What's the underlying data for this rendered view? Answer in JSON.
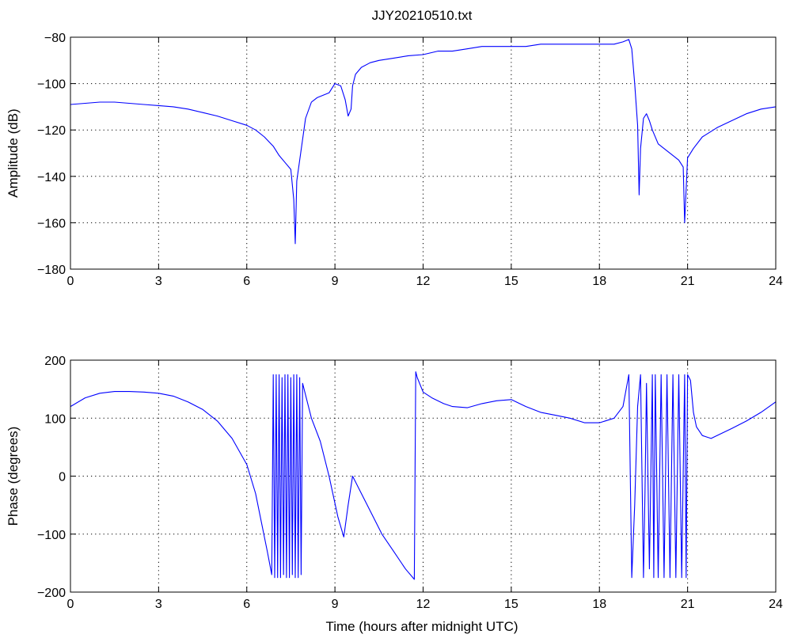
{
  "title": "JJY20210510.txt",
  "xlabel": "Time (hours after midnight UTC)",
  "chart_data": [
    {
      "type": "line",
      "title": "JJY20210510.txt",
      "xlabel": "",
      "ylabel": "Amplitude (dB)",
      "xlim": [
        0,
        24
      ],
      "ylim": [
        -180,
        -80
      ],
      "xticks": [
        0,
        3,
        6,
        9,
        12,
        15,
        18,
        21,
        24
      ],
      "yticks": [
        -80,
        -100,
        -120,
        -140,
        -160,
        -180
      ],
      "ytick_labels": [
        "−80",
        "−100",
        "−120",
        "−140",
        "−160",
        "−180"
      ],
      "grid": true,
      "color": "#0000ff",
      "series": [
        {
          "name": "",
          "x": [
            0,
            0.5,
            1,
            1.5,
            2,
            2.5,
            3,
            3.5,
            4,
            4.5,
            5,
            5.5,
            6,
            6.3,
            6.6,
            6.9,
            7.1,
            7.3,
            7.5,
            7.6,
            7.65,
            7.7,
            7.8,
            7.9,
            8.0,
            8.2,
            8.4,
            8.6,
            8.8,
            9.0,
            9.2,
            9.35,
            9.45,
            9.55,
            9.6,
            9.7,
            9.9,
            10.2,
            10.5,
            11,
            11.5,
            12,
            12.5,
            13,
            13.5,
            14,
            14.5,
            15,
            15.5,
            16,
            16.5,
            17,
            17.5,
            18,
            18.5,
            18.8,
            19.0,
            19.1,
            19.2,
            19.3,
            19.35,
            19.4,
            19.5,
            19.6,
            19.7,
            19.8,
            20.0,
            20.3,
            20.5,
            20.7,
            20.85,
            20.9,
            21.0,
            21.2,
            21.5,
            22,
            22.5,
            23,
            23.5,
            24
          ],
          "y": [
            -109,
            -108.5,
            -108,
            -108,
            -108.5,
            -109,
            -109.5,
            -110,
            -111,
            -112.5,
            -114,
            -116,
            -118,
            -120,
            -123,
            -127,
            -131,
            -134,
            -137,
            -150,
            -169,
            -142,
            -133,
            -124,
            -115,
            -108,
            -106,
            -105,
            -104,
            -100,
            -101,
            -107,
            -114,
            -111,
            -101,
            -96,
            -93,
            -91,
            -90,
            -89,
            -88,
            -87.5,
            -86,
            -86,
            -85,
            -84,
            -84,
            -84,
            -84,
            -83,
            -83,
            -83,
            -83,
            -83,
            -83,
            -82,
            -81,
            -85,
            -100,
            -118,
            -148,
            -128,
            -115,
            -113,
            -116,
            -120,
            -126,
            -129,
            -131,
            -133,
            -136,
            -160,
            -132,
            -128,
            -123,
            -119,
            -116,
            -113,
            -111,
            -110
          ]
        }
      ]
    },
    {
      "type": "line",
      "title": "",
      "xlabel": "Time (hours after midnight UTC)",
      "ylabel": "Phase (degrees)",
      "xlim": [
        0,
        24
      ],
      "ylim": [
        -200,
        200
      ],
      "xticks": [
        0,
        3,
        6,
        9,
        12,
        15,
        18,
        21,
        24
      ],
      "yticks": [
        200,
        100,
        0,
        -100,
        -200
      ],
      "ytick_labels": [
        "200",
        "100",
        "0",
        "−100",
        "−200"
      ],
      "grid": true,
      "color": "#0000ff",
      "series": [
        {
          "name": "",
          "x": [
            0,
            0.5,
            1,
            1.5,
            2,
            2.5,
            3,
            3.5,
            4,
            4.5,
            5,
            5.5,
            6.0,
            6.3,
            6.5,
            6.7,
            6.85,
            6.9,
            6.95,
            7.0,
            7.05,
            7.1,
            7.15,
            7.2,
            7.25,
            7.3,
            7.35,
            7.4,
            7.45,
            7.5,
            7.55,
            7.6,
            7.65,
            7.7,
            7.75,
            7.8,
            7.85,
            7.9,
            8.2,
            8.5,
            8.8,
            9.1,
            9.3,
            9.45,
            9.6,
            9.7,
            9.8,
            10.2,
            10.6,
            11.0,
            11.4,
            11.7,
            11.75,
            11.8,
            12.0,
            12.3,
            12.7,
            13.0,
            13.5,
            14.0,
            14.5,
            15.0,
            15.5,
            16.0,
            16.5,
            17.0,
            17.5,
            18.0,
            18.5,
            18.8,
            19.0,
            19.1,
            19.2,
            19.3,
            19.4,
            19.5,
            19.55,
            19.6,
            19.7,
            19.8,
            19.85,
            19.9,
            20.0,
            20.1,
            20.2,
            20.3,
            20.4,
            20.5,
            20.6,
            20.7,
            20.8,
            20.9,
            20.95,
            21.0,
            21.1,
            21.2,
            21.3,
            21.5,
            21.8,
            22.0,
            22.5,
            23.0,
            23.5,
            24.0
          ],
          "y": [
            120,
            135,
            143,
            146,
            146,
            145,
            143,
            138,
            128,
            115,
            95,
            65,
            20,
            -30,
            -80,
            -130,
            -170,
            175,
            -175,
            175,
            -175,
            175,
            -175,
            170,
            -170,
            175,
            -175,
            175,
            -175,
            170,
            -170,
            175,
            -175,
            175,
            -175,
            170,
            -170,
            160,
            100,
            60,
            0,
            -70,
            -105,
            -50,
            0,
            -10,
            -20,
            -60,
            -100,
            -130,
            -160,
            -178,
            180,
            170,
            145,
            135,
            125,
            120,
            118,
            125,
            130,
            132,
            120,
            110,
            105,
            100,
            92,
            92,
            100,
            120,
            175,
            -175,
            -50,
            120,
            175,
            -175,
            -30,
            160,
            -160,
            175,
            -175,
            175,
            -175,
            175,
            -175,
            175,
            -175,
            175,
            -175,
            175,
            -175,
            175,
            -175,
            175,
            165,
            110,
            85,
            70,
            65,
            70,
            82,
            95,
            110,
            128
          ]
        }
      ]
    }
  ]
}
